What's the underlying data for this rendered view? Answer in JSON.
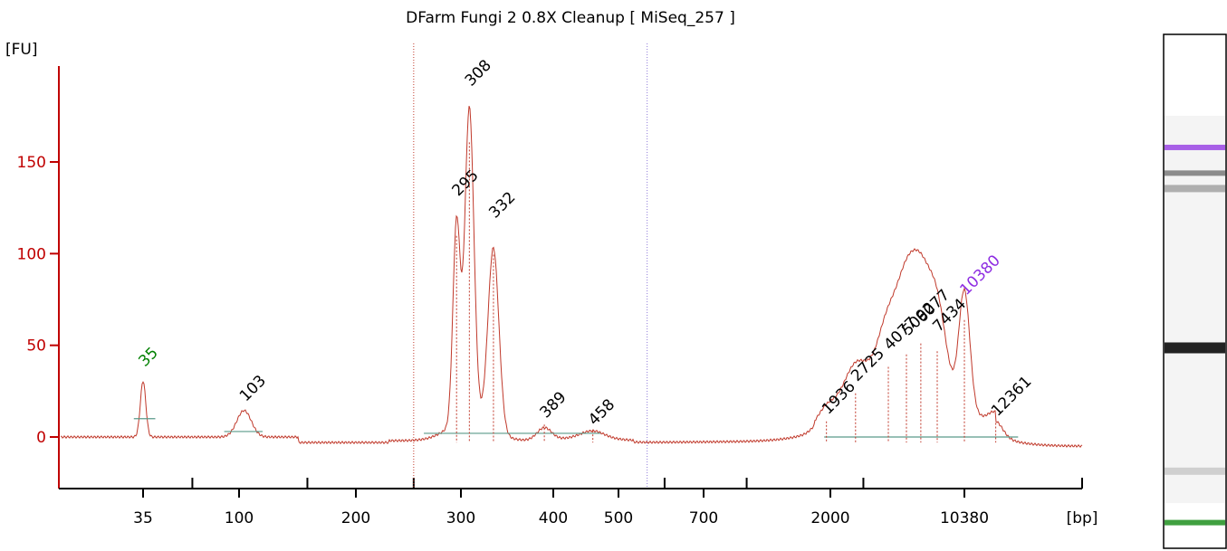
{
  "colors": {
    "axis_y": "#c00000",
    "axis_x": "#000000",
    "trace": "#c0392b",
    "marker_lower": "#008000",
    "marker_upper": "#8e2de2",
    "baseline": "#5a9a8a",
    "gel_background": "#f4f4f4"
  },
  "chart_data": {
    "type": "line",
    "title": "DFarm Fungi 2 0.8X Cleanup  [ MiSeq_257 ]",
    "ylabel": "[FU]",
    "xlabel": "[bp]",
    "ylim": [
      -28,
      162
    ],
    "y_ticks": [
      "0",
      "50",
      "100",
      "150"
    ],
    "x_ticks": [
      "35",
      "100",
      "200",
      "300",
      "400",
      "500",
      "700",
      "2000",
      "10380"
    ],
    "x_tick_values": [
      35,
      100,
      200,
      300,
      400,
      500,
      700,
      2000,
      10380
    ],
    "grid": false,
    "legend": "none",
    "size_range_markers": [
      250,
      560
    ],
    "peaks": [
      {
        "label": "35",
        "bp": 35,
        "fu": 36,
        "color": "marker_lower"
      },
      {
        "label": "103",
        "bp": 103,
        "fu": 17,
        "color": "black"
      },
      {
        "label": "295",
        "bp": 295,
        "fu": 129,
        "color": "black"
      },
      {
        "label": "308",
        "bp": 308,
        "fu": 189,
        "color": "black"
      },
      {
        "label": "332",
        "bp": 332,
        "fu": 117,
        "color": "black"
      },
      {
        "label": "389",
        "bp": 389,
        "fu": 8,
        "color": "black"
      },
      {
        "label": "458",
        "bp": 458,
        "fu": 4,
        "color": "black"
      },
      {
        "label": "1936",
        "bp": 1936,
        "fu": 10,
        "color": "black"
      },
      {
        "label": "2725",
        "bp": 2725,
        "fu": 28,
        "color": "black"
      },
      {
        "label": "4077",
        "bp": 4077,
        "fu": 45,
        "color": "black"
      },
      {
        "label": "5092",
        "bp": 5092,
        "fu": 53,
        "color": "black"
      },
      {
        "label": "6077",
        "bp": 6077,
        "fu": 60,
        "color": "black"
      },
      {
        "label": "7434",
        "bp": 7434,
        "fu": 55,
        "color": "black"
      },
      {
        "label": "10380",
        "bp": 10380,
        "fu": 75,
        "color": "marker_upper"
      },
      {
        "label": "12361",
        "bp": 12361,
        "fu": 9,
        "color": "black"
      }
    ]
  },
  "gel": {
    "bands": [
      {
        "position": 0.22,
        "intensity": 0.45,
        "color": "#8e2de2"
      },
      {
        "position": 0.27,
        "intensity": 0.35,
        "color": "#555555"
      },
      {
        "position": 0.3,
        "intensity": 0.25,
        "color": "#777777"
      },
      {
        "position": 0.61,
        "intensity": 0.9,
        "color": "#222222"
      },
      {
        "position": 0.85,
        "intensity": 0.2,
        "color": "#aaaaaa"
      },
      {
        "position": 0.95,
        "intensity": 0.45,
        "color": "#008000"
      }
    ]
  }
}
